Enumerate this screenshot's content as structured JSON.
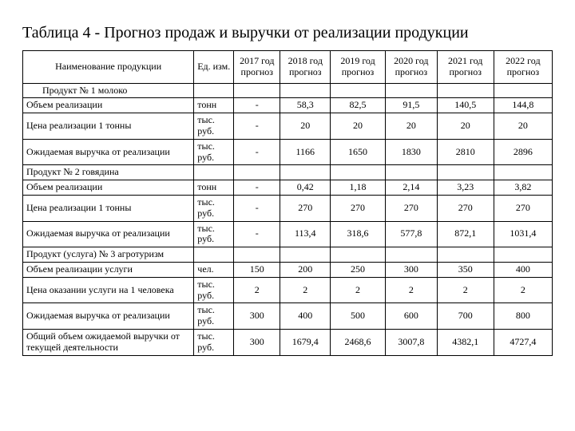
{
  "title": "Таблица 4 - Прогноз продаж и выручки от реализации продукции",
  "columns": [
    "Наименование продукции",
    "Ед. изм.",
    "2017 год прогноз",
    "2018 год прогноз",
    "2019 год прогноз",
    "2020 год прогноз",
    "2021 год прогноз",
    "2022 год прогноз"
  ],
  "rows": [
    {
      "type": "section",
      "name": "Продукт № 1 молоко",
      "unit": "",
      "cells": [
        "",
        "",
        "",
        "",
        "",
        ""
      ]
    },
    {
      "type": "data",
      "name": "Объем реализации",
      "unit": "тонн",
      "cells": [
        "-",
        "58,3",
        "82,5",
        "91,5",
        "140,5",
        "144,8"
      ]
    },
    {
      "type": "data",
      "name": "Цена реализации 1 тонны",
      "unit": "тыс. руб.",
      "cells": [
        "-",
        "20",
        "20",
        "20",
        "20",
        "20"
      ]
    },
    {
      "type": "data",
      "name": "Ожидаемая выручка от реализации",
      "unit": "тыс. руб.",
      "cells": [
        "-",
        "1166",
        "1650",
        "1830",
        "2810",
        "2896"
      ]
    },
    {
      "type": "section-left",
      "name": "Продукт № 2 говядина",
      "unit": "",
      "cells": [
        "",
        "",
        "",
        "",
        "",
        ""
      ]
    },
    {
      "type": "data",
      "name": "Объем реализации",
      "unit": "тонн",
      "cells": [
        "-",
        "0,42",
        "1,18",
        "2,14",
        "3,23",
        "3,82"
      ]
    },
    {
      "type": "data",
      "name": "Цена реализации 1 тонны",
      "unit": "тыс. руб.",
      "cells": [
        "-",
        "270",
        "270",
        "270",
        "270",
        "270"
      ]
    },
    {
      "type": "data",
      "name": "Ожидаемая выручка от реализации",
      "unit": "тыс. руб.",
      "cells": [
        "-",
        "113,4",
        "318,6",
        "577,8",
        "872,1",
        "1031,4"
      ]
    },
    {
      "type": "section-left",
      "name": "Продукт (услуга) № 3 агротуризм",
      "unit": "",
      "cells": [
        "",
        "",
        "",
        "",
        "",
        ""
      ]
    },
    {
      "type": "data",
      "name": "Объем реализации услуги",
      "unit": "чел.",
      "cells": [
        "150",
        "200",
        "250",
        "300",
        "350",
        "400"
      ]
    },
    {
      "type": "data",
      "name": "Цена оказании услуги на 1 человека",
      "unit": "тыс. руб.",
      "cells": [
        "2",
        "2",
        "2",
        "2",
        "2",
        "2"
      ]
    },
    {
      "type": "data",
      "name": "Ожидаемая выручка от реализации",
      "unit": "тыс. руб.",
      "cells": [
        "300",
        "400",
        "500",
        "600",
        "700",
        "800"
      ]
    },
    {
      "type": "data",
      "name": "Общий объем ожидаемой выручки от текущей деятельности",
      "unit": "тыс. руб.",
      "cells": [
        "300",
        "1679,4",
        "2468,6",
        "3007,8",
        "4382,1",
        "4727,4"
      ]
    }
  ]
}
